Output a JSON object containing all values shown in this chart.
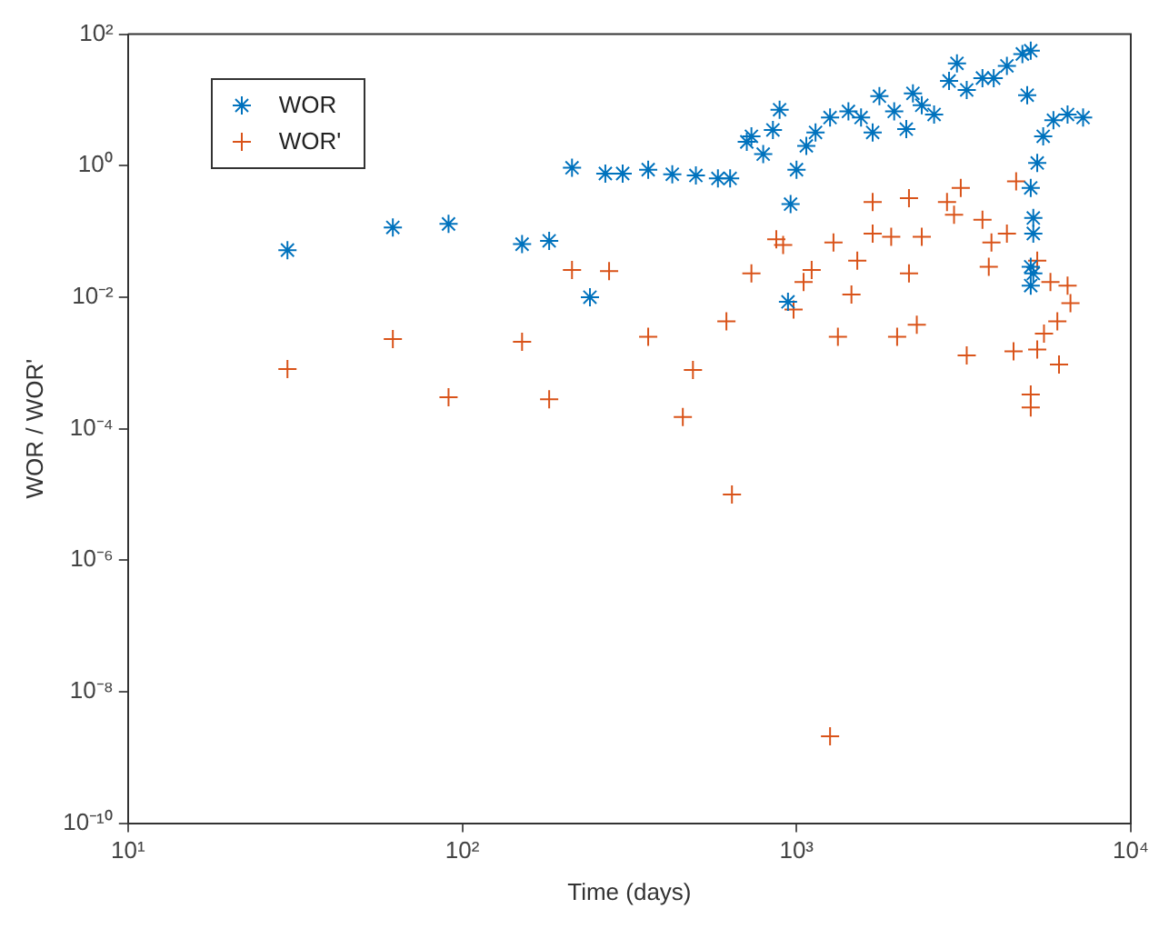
{
  "chart_data": {
    "type": "scatter",
    "xlabel": "Time (days)",
    "ylabel": "WOR / WOR'",
    "log": "xy",
    "grid": false,
    "legend": "top left",
    "xlim": [
      10,
      10000
    ],
    "xticks": [
      {
        "value": 10,
        "label": "10¹"
      },
      {
        "value": 100,
        "label": "10²"
      },
      {
        "value": 1000,
        "label": "10³"
      },
      {
        "value": 10000,
        "label": "10⁴"
      }
    ],
    "ylim": [
      1e-10,
      100
    ],
    "yticks": [
      {
        "value": 1e-10,
        "label": "10⁻¹⁰"
      },
      {
        "value": 1e-08,
        "label": "10⁻⁸"
      },
      {
        "value": 1e-06,
        "label": "10⁻⁶"
      },
      {
        "value": 0.0001,
        "label": "10⁻⁴"
      },
      {
        "value": 0.01,
        "label": "10⁻²"
      },
      {
        "value": 1,
        "label": "10⁰"
      },
      {
        "value": 100,
        "label": "10²"
      }
    ],
    "series": [
      {
        "name": "WOR",
        "color": "#0072bd",
        "x": [
          30,
          62,
          91,
          151,
          182,
          213,
          241,
          268,
          302,
          360,
          425,
          500,
          582,
          633,
          710,
          733,
          795,
          850,
          890,
          943,
          960,
          1000,
          1070,
          1140,
          1260,
          1430,
          1560,
          1690,
          1770,
          1960,
          2130,
          2230,
          2370,
          2580,
          2860,
          3020,
          3230,
          3600,
          3890,
          4260,
          4740,
          4900,
          5020,
          5020,
          5110,
          5110,
          5020,
          5020,
          5110,
          5250,
          5470,
          5870,
          6470,
          7200
        ],
        "values": [
          0.052,
          0.115,
          0.13,
          0.064,
          0.072,
          0.93,
          0.01,
          0.76,
          0.76,
          0.87,
          0.74,
          0.71,
          0.64,
          0.64,
          2.3,
          2.8,
          1.5,
          3.5,
          7.1,
          0.0085,
          0.26,
          0.87,
          2.0,
          3.2,
          5.4,
          6.7,
          5.4,
          3.2,
          11.4,
          6.7,
          3.6,
          12.6,
          8.3,
          6,
          19.4,
          36,
          14.2,
          21.5,
          21.5,
          33,
          50,
          11.8,
          56,
          0.46,
          0.16,
          0.093,
          0.029,
          0.015,
          0.023,
          1.1,
          2.8,
          4.9,
          6,
          5.4
        ]
      },
      {
        "name": "WOR'",
        "color": "#d95319",
        "marker": "cross",
        "x": [
          30,
          62,
          91,
          151,
          182,
          213,
          275,
          360,
          457,
          490,
          617,
          641,
          733,
          870,
          912,
          980,
          1050,
          1110,
          1260,
          1290,
          1330,
          1460,
          1520,
          1690,
          1690,
          1920,
          2000,
          2170,
          2170,
          2290,
          2370,
          2820,
          2960,
          3100,
          3230,
          3600,
          3760,
          3830,
          4260,
          4460,
          4540,
          5020,
          5020,
          5250,
          5250,
          5500,
          5750,
          6030,
          6100,
          6470,
          6600
        ],
        "values": [
          0.00081,
          0.0023,
          0.0003,
          0.0021,
          0.00028,
          0.026,
          0.025,
          0.0025,
          0.00015,
          0.00078,
          0.0043,
          1e-05,
          0.023,
          0.076,
          0.062,
          0.0065,
          0.017,
          0.026,
          2.1e-09,
          0.068,
          0.0025,
          0.011,
          0.036,
          0.28,
          0.093,
          0.083,
          0.0025,
          0.32,
          0.023,
          0.0038,
          0.083,
          0.28,
          0.18,
          0.46,
          0.0013,
          0.15,
          0.029,
          0.068,
          0.093,
          0.0015,
          0.58,
          0.00033,
          0.00021,
          0.0016,
          0.036,
          0.0028,
          0.017,
          0.0043,
          0.00095,
          0.015,
          0.0081
        ]
      }
    ]
  }
}
